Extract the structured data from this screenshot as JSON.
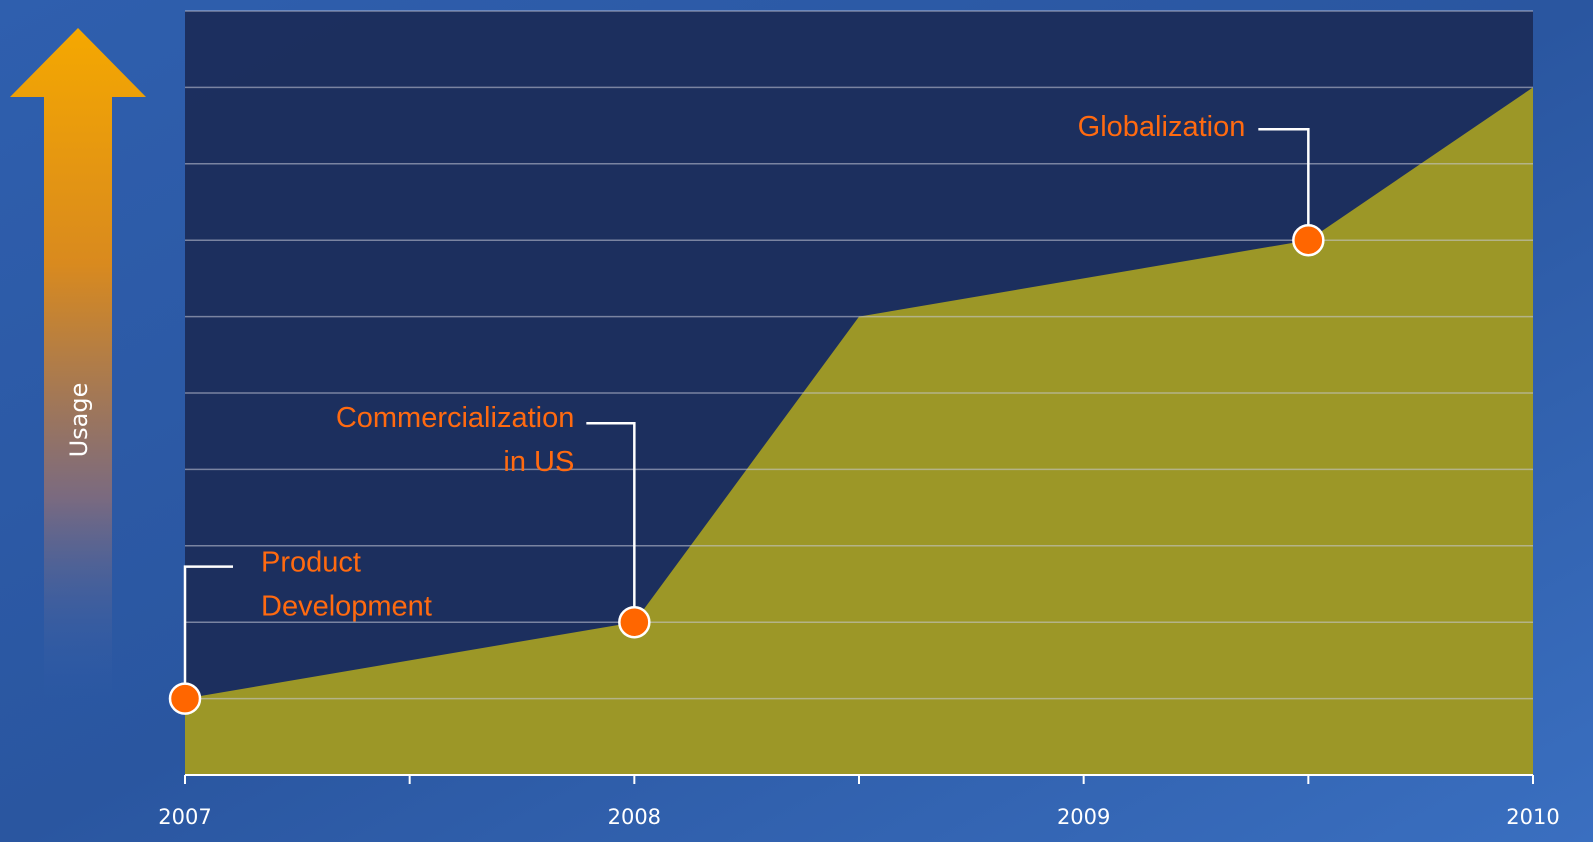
{
  "chart_data": {
    "type": "area",
    "y_label": "Usage",
    "x": [
      2007,
      2008,
      2008.5,
      2009.5,
      2010
    ],
    "values": [
      1,
      2,
      6,
      7,
      9
    ],
    "color": "#a39d24",
    "xlim": [
      2007,
      2010
    ],
    "xticks": [
      2007,
      2008,
      2009,
      2010
    ],
    "xminor_ticks": [
      2007.5,
      2008.5,
      2009.5
    ],
    "ylim": [
      0,
      10
    ],
    "ygrid": [
      1,
      2,
      3,
      4,
      5,
      6,
      7,
      8,
      9,
      10
    ],
    "grid": true,
    "marker_color": "#ff6600",
    "annotations": [
      {
        "text": [
          "Product",
          "Development"
        ],
        "x": 2007,
        "y": 1
      },
      {
        "text": [
          "Commercialization",
          "in US"
        ],
        "x": 2008,
        "y": 2
      },
      {
        "text": [
          "Globalization"
        ],
        "x": 2009.5,
        "y": 7
      }
    ]
  }
}
